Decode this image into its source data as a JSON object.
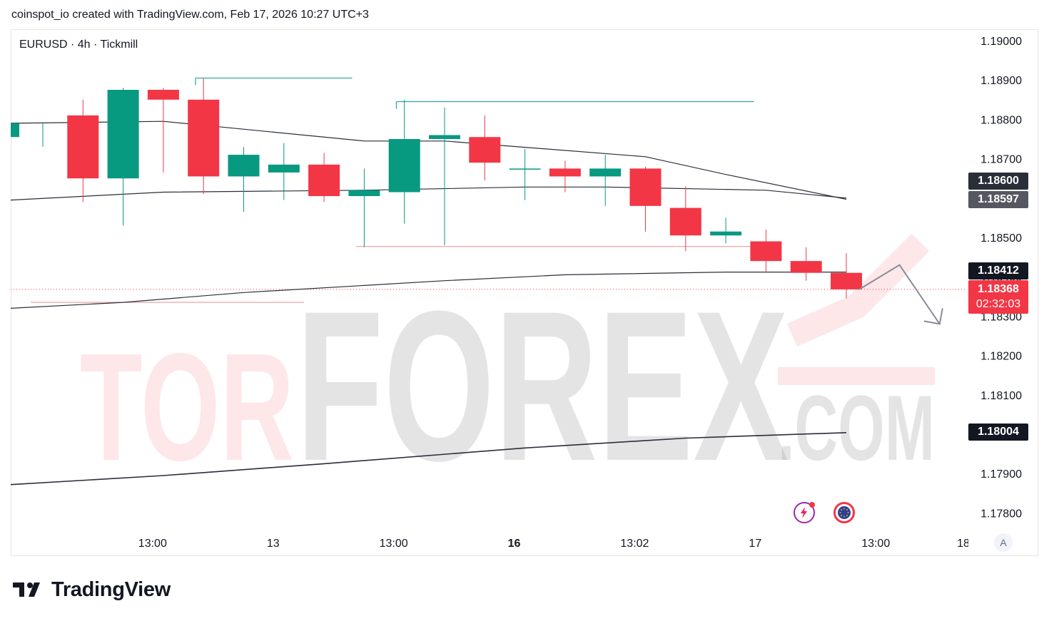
{
  "header": {
    "attribution": "coinspot_io created with TradingView.com, Feb 17, 2026 10:27 UTC+3"
  },
  "symbol": {
    "label": "EURUSD · 4h · Tickmill"
  },
  "price_tags": {
    "ma_upper": "1.18600",
    "ma_middle": "1.18597",
    "ma_long": "1.18412",
    "last_price": "1.18368",
    "countdown": "02:32:03",
    "ma_lowest": "1.18004"
  },
  "watermark": {
    "text_red": "TOR",
    "text_gray": "FOREX",
    "text_suffix": ".COM"
  },
  "footer": {
    "brand": "TradingView",
    "auto_button": "A"
  },
  "colors": {
    "bull": "#089981",
    "bear": "#f23645",
    "ma": "#2a2e39",
    "level_teal": "#26a69a",
    "level_red": "#ef9a9a",
    "tag_dark": "#131722",
    "tag_gray": "#555761"
  },
  "chart_data": {
    "type": "candlestick",
    "title": "EURUSD · 4h · Tickmill",
    "y_ticks": [
      "1.19000",
      "1.18900",
      "1.18800",
      "1.18700",
      "1.18600",
      "1.18500",
      "1.18400",
      "1.18300",
      "1.18200",
      "1.18100",
      "1.18000",
      "1.17900",
      "1.17800"
    ],
    "x_ticks": [
      {
        "label": "13:00",
        "index": 2.75,
        "bold": false
      },
      {
        "label": "13",
        "index": 5.75,
        "bold": false
      },
      {
        "label": "13:00",
        "index": 8.75,
        "bold": false
      },
      {
        "label": "16",
        "index": 11.75,
        "bold": true
      },
      {
        "label": "13:02",
        "index": 14.75,
        "bold": false
      },
      {
        "label": "17",
        "index": 17.75,
        "bold": false
      },
      {
        "label": "13:00",
        "index": 20.75,
        "bold": false
      },
      {
        "label": "18",
        "index": 23.75,
        "bold": false
      }
    ],
    "ylim": [
      1.1775,
      1.1905
    ],
    "candles": [
      {
        "o": 1.18755,
        "h": 1.1879,
        "l": 1.1873,
        "c": 1.1879
      },
      {
        "o": 1.1881,
        "h": 1.1885,
        "l": 1.1859,
        "c": 1.1865
      },
      {
        "o": 1.1865,
        "h": 1.1888,
        "l": 1.1853,
        "c": 1.18875
      },
      {
        "o": 1.18875,
        "h": 1.1888,
        "l": 1.18665,
        "c": 1.1885
      },
      {
        "o": 1.1885,
        "h": 1.18905,
        "l": 1.1861,
        "c": 1.18655
      },
      {
        "o": 1.18655,
        "h": 1.1873,
        "l": 1.18565,
        "c": 1.1871
      },
      {
        "o": 1.18665,
        "h": 1.1874,
        "l": 1.18595,
        "c": 1.18685
      },
      {
        "o": 1.18685,
        "h": 1.18715,
        "l": 1.1859,
        "c": 1.18605
      },
      {
        "o": 1.18605,
        "h": 1.18675,
        "l": 1.18475,
        "c": 1.1862
      },
      {
        "o": 1.18615,
        "h": 1.1885,
        "l": 1.18535,
        "c": 1.1875
      },
      {
        "o": 1.1875,
        "h": 1.1883,
        "l": 1.1848,
        "c": 1.1876
      },
      {
        "o": 1.18755,
        "h": 1.1881,
        "l": 1.18645,
        "c": 1.1869
      },
      {
        "o": 1.18675,
        "h": 1.18725,
        "l": 1.18595,
        "c": 1.18675
      },
      {
        "o": 1.18675,
        "h": 1.18695,
        "l": 1.18615,
        "c": 1.18655
      },
      {
        "o": 1.18655,
        "h": 1.1871,
        "l": 1.1858,
        "c": 1.18675
      },
      {
        "o": 1.18675,
        "h": 1.1868,
        "l": 1.18515,
        "c": 1.1858
      },
      {
        "o": 1.18575,
        "h": 1.1863,
        "l": 1.18465,
        "c": 1.18505
      },
      {
        "o": 1.18505,
        "h": 1.1855,
        "l": 1.18485,
        "c": 1.18515
      },
      {
        "o": 1.1849,
        "h": 1.1852,
        "l": 1.1841,
        "c": 1.1844
      },
      {
        "o": 1.1844,
        "h": 1.18475,
        "l": 1.1839,
        "c": 1.1841
      },
      {
        "o": 1.1841,
        "h": 1.1846,
        "l": 1.18345,
        "c": 1.18368
      }
    ],
    "ma_series": [
      {
        "points": [
          [
            0,
            1.1879
          ],
          [
            3,
            1.18795
          ],
          [
            4,
            1.18785
          ],
          [
            8,
            1.18745
          ],
          [
            10,
            1.18745
          ],
          [
            15,
            1.18705
          ],
          [
            17,
            1.1866
          ],
          [
            20,
            1.18597
          ]
        ]
      },
      {
        "points": [
          [
            0,
            1.18595
          ],
          [
            3,
            1.18615
          ],
          [
            8,
            1.1862
          ],
          [
            12,
            1.18628
          ],
          [
            14,
            1.18628
          ],
          [
            18,
            1.1862
          ],
          [
            20,
            1.186
          ]
        ]
      },
      {
        "points": [
          [
            0,
            1.1832
          ],
          [
            2,
            1.18335
          ],
          [
            5,
            1.1836
          ],
          [
            10,
            1.1839
          ],
          [
            13,
            1.18405
          ],
          [
            17,
            1.18412
          ],
          [
            20,
            1.18412
          ]
        ]
      },
      {
        "points": [
          [
            0,
            1.17872
          ],
          [
            3,
            1.17895
          ],
          [
            7,
            1.17925
          ],
          [
            12,
            1.17965
          ],
          [
            16,
            1.1799
          ],
          [
            20,
            1.18004
          ]
        ]
      }
    ],
    "levels": [
      {
        "price": 1.18905,
        "from": 3.8,
        "to": 7.7,
        "color": "teal"
      },
      {
        "price": 1.18845,
        "from": 8.8,
        "to": 17.7,
        "color": "teal"
      },
      {
        "price": 1.18477,
        "from": 7.8,
        "to": 17.7,
        "color": "red"
      },
      {
        "price": 1.18335,
        "from": -0.3,
        "to": 6.5,
        "color": "red"
      }
    ],
    "forecast_path": [
      [
        20.5,
        1.18368
      ],
      [
        21.5,
        1.1843
      ],
      [
        22.5,
        1.1828
      ]
    ],
    "last_price": 1.18368
  }
}
